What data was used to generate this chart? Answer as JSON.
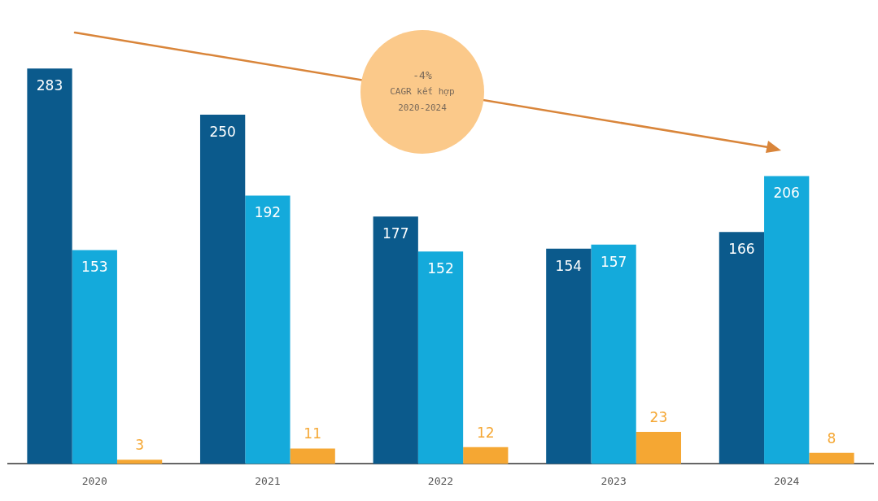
{
  "chart_data": {
    "type": "bar",
    "categories": [
      "2020",
      "2021",
      "2022",
      "2023",
      "2024"
    ],
    "series": [
      {
        "color": "#0b5a8c",
        "values": [
          283,
          250,
          177,
          154,
          166
        ]
      },
      {
        "color": "#14aadb",
        "values": [
          153,
          192,
          152,
          157,
          206
        ]
      },
      {
        "color": "#f5a733",
        "values": [
          3,
          11,
          12,
          23,
          8
        ]
      }
    ],
    "ylim": [
      0,
      332
    ],
    "data_labels": true,
    "legend": false,
    "grid": false,
    "annotations": [
      "-4%",
      "CAGR kết hợp",
      "2020-2024"
    ]
  }
}
